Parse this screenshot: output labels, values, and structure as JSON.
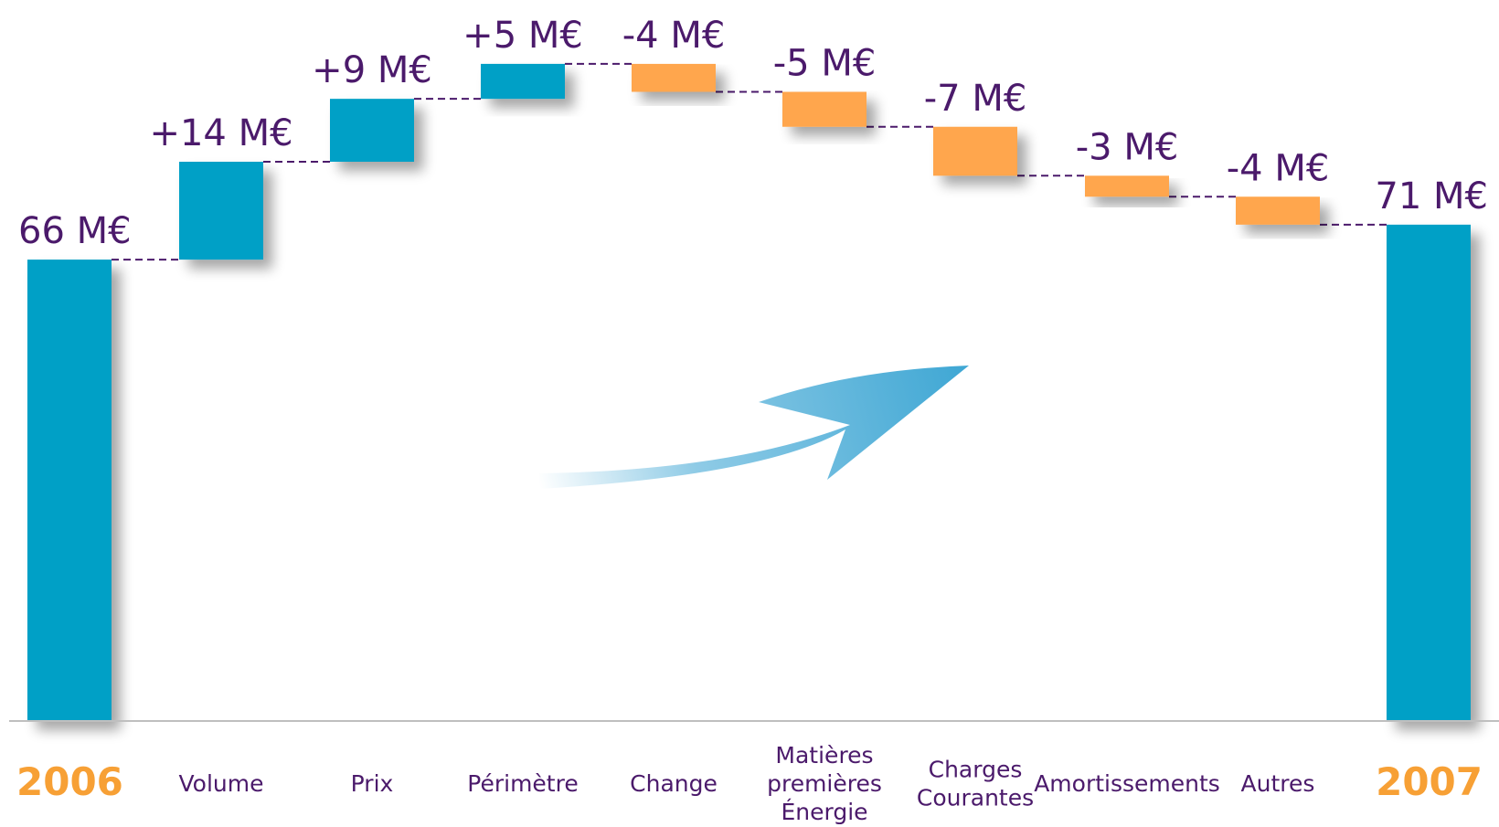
{
  "colors": {
    "increase": "#00A0C6",
    "decrease": "#FFA64D",
    "total": "#00A0C6",
    "value_text": "#4B1A6B",
    "category_text": "#4B1A6B",
    "year_text": "#F7A035",
    "connector": "#4B1A6B",
    "axis": "#BFBFBF",
    "arrow": "#3FA7D4"
  },
  "decoration": {
    "arrow_icon": "upward-curved-arrow-icon"
  },
  "chart_data": {
    "type": "bar",
    "subtype": "waterfall",
    "unit": "M€",
    "title": "",
    "xlabel": "",
    "ylabel": "",
    "grid": false,
    "legend": "none",
    "ylim": [
      0,
      80
    ],
    "categories": [
      {
        "label": "2006",
        "style": "year"
      },
      {
        "label": "Volume",
        "style": "normal"
      },
      {
        "label": "Prix",
        "style": "normal"
      },
      {
        "label": "Périmètre",
        "style": "normal"
      },
      {
        "label": "Change",
        "style": "normal"
      },
      {
        "label": "Matières premières Énergie",
        "lines": [
          "Matières",
          "premières",
          "Énergie"
        ],
        "style": "normal"
      },
      {
        "label": "Charges Courantes",
        "lines": [
          "Charges",
          "Courantes"
        ],
        "style": "normal"
      },
      {
        "label": "Amortissements",
        "style": "normal"
      },
      {
        "label": "Autres",
        "style": "normal"
      },
      {
        "label": "2007",
        "style": "year"
      }
    ],
    "values": [
      66,
      14,
      9,
      5,
      -4,
      -5,
      -7,
      -3,
      -4,
      71
    ],
    "kinds": [
      "total",
      "delta",
      "delta",
      "delta",
      "delta",
      "delta",
      "delta",
      "delta",
      "delta",
      "total"
    ],
    "data_labels": [
      "66 M€",
      "+14 M€",
      "+9 M€",
      "+5 M€",
      "-4 M€",
      "-5 M€",
      "-7 M€",
      "-3 M€",
      "-4 M€",
      "71 M€"
    ]
  }
}
